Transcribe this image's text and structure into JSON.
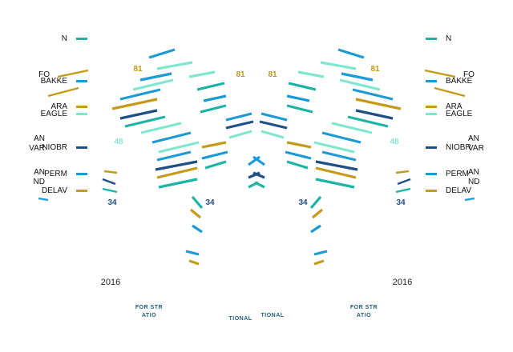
{
  "chart_data": {
    "type": "line",
    "legend": [
      {
        "label": "N",
        "color": "#1bb4a4"
      },
      {
        "label": "FO",
        "color": "#f0f0f0"
      },
      {
        "label": "BAKKE",
        "color": "#1b9ad6"
      },
      {
        "label": "ARA",
        "color": "#c59a16"
      },
      {
        "label": "EAGLE",
        "color": "#7fe6cf"
      },
      {
        "label": "AN",
        "color": "#f0f0f0"
      },
      {
        "label": "NIOBR",
        "color": "#1e4f86"
      },
      {
        "label": "VAR",
        "color": "#f0f0f0"
      },
      {
        "label": "PERM",
        "color": "#1b9ad6"
      },
      {
        "label": "AN",
        "color": "#f0f0f0"
      },
      {
        "label": "ND",
        "color": "#f0f0f0"
      },
      {
        "label": "DELAV",
        "color": "#c59a16"
      }
    ],
    "value_labels": [
      "81",
      "81",
      "81",
      "81",
      "48",
      "48",
      "34",
      "34",
      "34",
      "34"
    ],
    "year_labels": [
      "2016",
      "2016"
    ],
    "footer_labels": [
      "FOR STR",
      "FOR STR",
      "ATIO",
      "TIONAL",
      "TIONAL",
      "ATIO"
    ],
    "colors": {
      "teal": "#1bb4a4",
      "blue": "#1b9ad6",
      "gold": "#c59a16",
      "mint": "#7fe6cf",
      "navy": "#1e4f86",
      "footer": "#1f5f86"
    }
  }
}
